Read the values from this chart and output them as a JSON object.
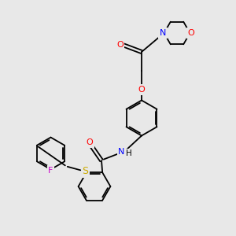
{
  "bg_color": "#e8e8e8",
  "bond_color": "#000000",
  "atom_colors": {
    "O": "#ff0000",
    "N": "#0000ff",
    "S": "#ccaa00",
    "F": "#cc00cc",
    "C": "#000000"
  }
}
